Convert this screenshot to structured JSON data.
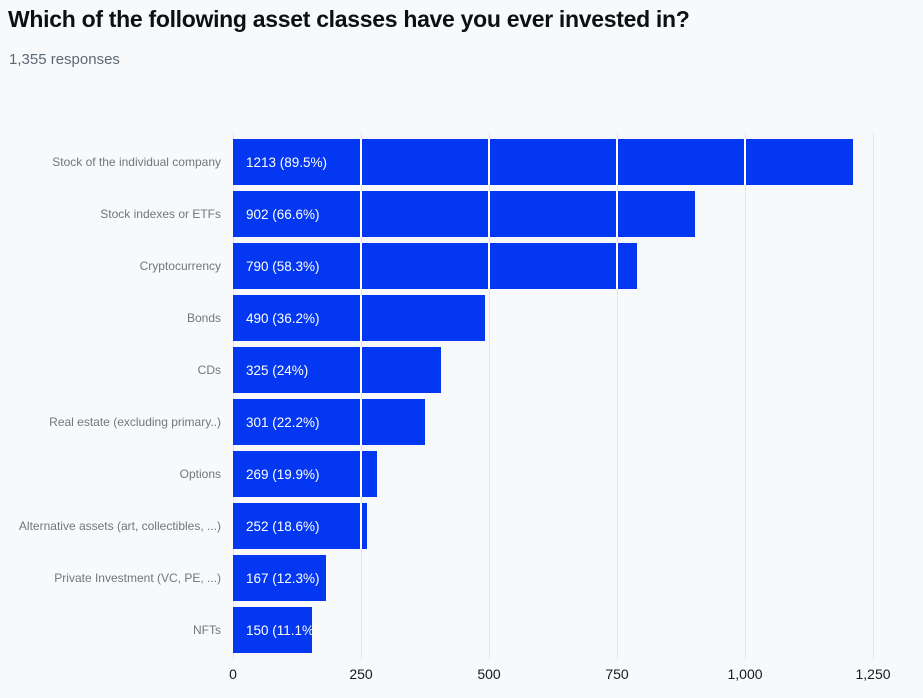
{
  "header": {
    "title": "Which of the following asset classes have you ever invested in?",
    "responses_label": "1,355 responses"
  },
  "chart_data": {
    "type": "bar",
    "orientation": "horizontal",
    "title": "Which of the following asset classes have you ever invested in?",
    "subtitle": "1,355 responses",
    "total_responses": 1355,
    "categories": [
      "Stock of the individual company",
      "Stock indexes or ETFs",
      "Cryptocurrency",
      "Bonds",
      "CDs",
      "Real estate (excluding primary..)",
      "Options",
      "Alternative assets (art, collectibles, ...)",
      "Private Investment (VC, PE, ...)",
      "NFTs"
    ],
    "values": [
      1213,
      902,
      790,
      490,
      325,
      301,
      269,
      252,
      167,
      150
    ],
    "percents": [
      "89.5%",
      "66.6%",
      "58.3%",
      "36.2%",
      "24%",
      "22.2%",
      "19.9%",
      "18.6%",
      "12.3%",
      "11.1%"
    ],
    "bar_labels": [
      "1213 (89.5%)",
      "902 (66.6%)",
      "790 (58.3%)",
      "490 (36.2%)",
      "325 (24%)",
      "301 (22.2%)",
      "269 (19.9%)",
      "252 (18.6%)",
      "167 (12.3%)",
      "150 (11.1%)"
    ],
    "x_ticks": [
      "0",
      "250",
      "500",
      "750",
      "1,000",
      "1,250"
    ],
    "x_tick_values": [
      0,
      250,
      500,
      750,
      1000,
      1250
    ],
    "xlim": [
      0,
      1250
    ],
    "grid": true,
    "legend": false,
    "colors": {
      "bar": "#0337f2",
      "gridline": "#e3e5e9",
      "bar_divider": "#ffffff",
      "category_label": "#70777f",
      "tick_label": "#17191d",
      "title": "#0d1013",
      "subtitle": "#5b6977",
      "background": "#f8f9fa"
    },
    "bar_pixel_widths": [
      620,
      462,
      404,
      252,
      208,
      192,
      144,
      134,
      93,
      79
    ]
  }
}
